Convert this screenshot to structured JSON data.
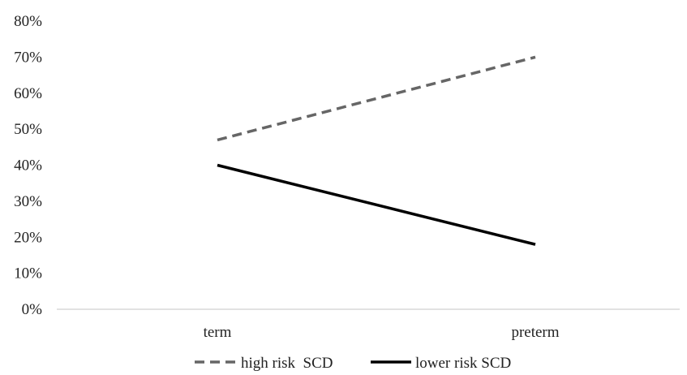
{
  "chart_data": {
    "type": "line",
    "title": "",
    "xlabel": "",
    "ylabel": "",
    "categories": [
      "term",
      "preterm"
    ],
    "ylim": [
      0,
      0.8
    ],
    "yticks": [
      "0%",
      "10%",
      "20%",
      "30%",
      "40%",
      "50%",
      "60%",
      "70%",
      "80%"
    ],
    "yticks_values": [
      0,
      0.1,
      0.2,
      0.3,
      0.4,
      0.5,
      0.6,
      0.7,
      0.8
    ],
    "grid": false,
    "legend_position": "bottom",
    "series": [
      {
        "name": "high risk  SCD",
        "values": [
          0.47,
          0.7
        ],
        "color": "#666666",
        "dashed": true
      },
      {
        "name": "lower risk SCD",
        "values": [
          0.4,
          0.18
        ],
        "color": "#000000",
        "dashed": false
      }
    ]
  }
}
